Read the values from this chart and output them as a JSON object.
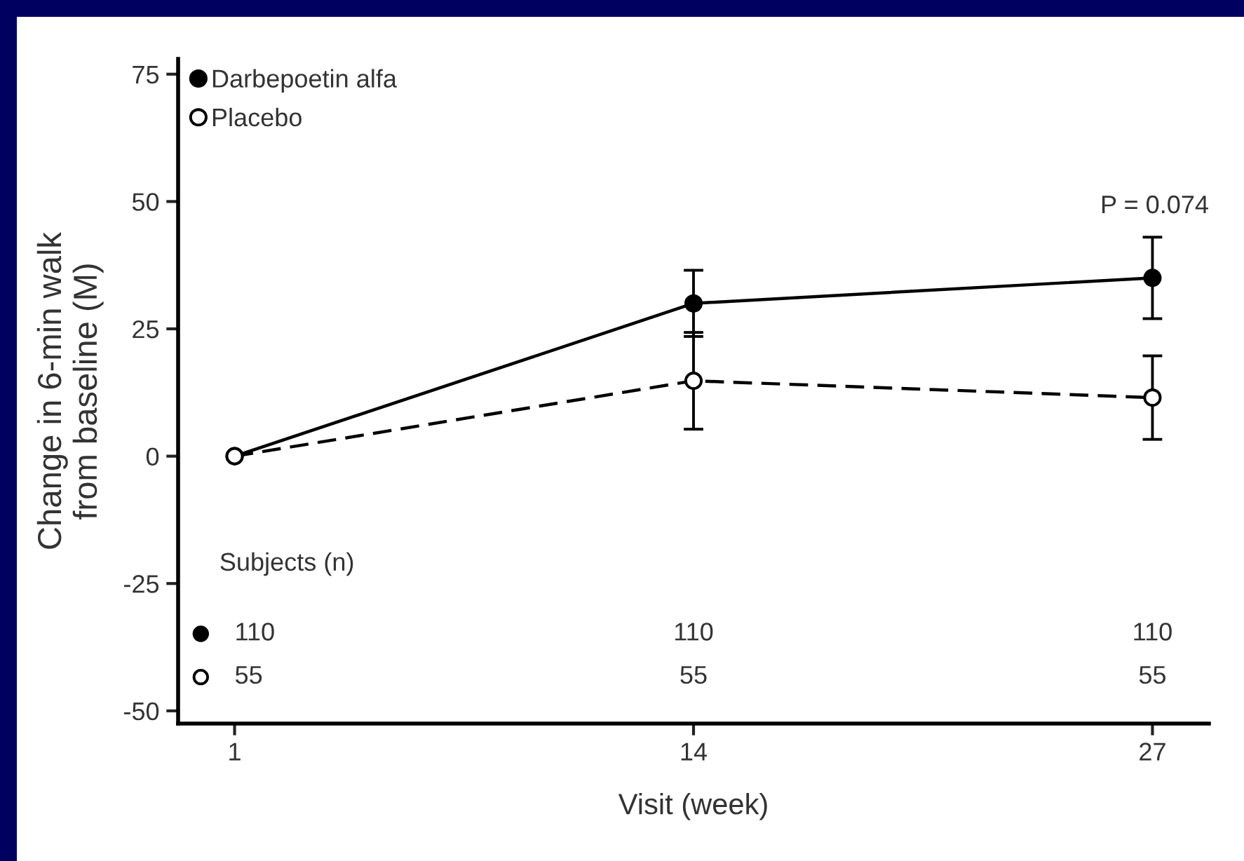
{
  "chart_data": {
    "type": "line",
    "xlabel": "Visit (week)",
    "ylabel": "Change in 6-min walk\nfrom baseline (M)",
    "x": [
      1,
      14,
      27
    ],
    "series": [
      {
        "name": "Darbepoetin alfa",
        "color": "#000000",
        "values": [
          0,
          30,
          35
        ],
        "errors": [
          null,
          6.5,
          8
        ],
        "marker": "circle",
        "line_style": "solid"
      },
      {
        "name": "Placebo",
        "color": "#000000",
        "values": [
          0,
          14.8,
          11.5
        ],
        "errors": [
          null,
          9.5,
          8.2
        ],
        "marker": "circle",
        "line_style": "dashed"
      }
    ],
    "xlim": [
      -0.6,
      28.6
    ],
    "xticks": [
      1,
      14,
      27
    ],
    "ylim": [
      -52.5,
      78
    ],
    "yticks": [
      -50,
      -25,
      0,
      25,
      50,
      75
    ],
    "legend": "top left",
    "grid": false,
    "annotations": [
      "P = 0.074",
      "Subjects (n)",
      "110",
      "110",
      "110",
      "55",
      "55",
      "55"
    ]
  }
}
